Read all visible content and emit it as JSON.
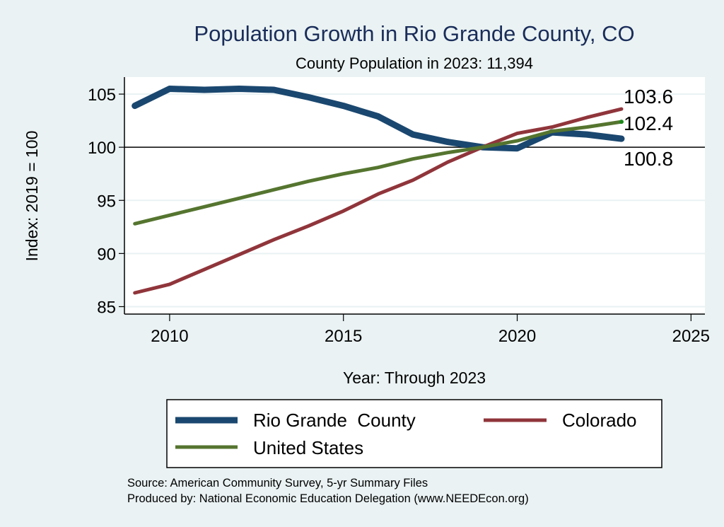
{
  "chart_data": {
    "type": "line",
    "title": "Population Growth in Rio Grande County, CO",
    "subtitle": "County Population in 2023: 11,394",
    "xlabel": "Year: Through 2023",
    "ylabel": "Index: 2019 = 100",
    "xlim": [
      2008.7,
      2025.4
    ],
    "ylim": [
      84.3,
      106.6
    ],
    "x_ticks": [
      2010,
      2015,
      2020,
      2025
    ],
    "y_ticks": [
      85,
      90,
      95,
      100,
      105
    ],
    "x_tick_labels": [
      "2010",
      "2015",
      "2020",
      "2025"
    ],
    "y_tick_labels": [
      "85",
      "90",
      "95",
      "100",
      "105"
    ],
    "grid": true,
    "reference_line": 100,
    "x": [
      2009,
      2010,
      2011,
      2012,
      2013,
      2014,
      2015,
      2016,
      2017,
      2018,
      2019,
      2020,
      2021,
      2022,
      2023
    ],
    "series": [
      {
        "name": "Rio Grande  County",
        "color": "#1a476f",
        "values": [
          103.9,
          105.5,
          105.4,
          105.5,
          105.4,
          104.7,
          103.9,
          102.9,
          101.2,
          100.5,
          100.0,
          99.9,
          101.4,
          101.2,
          100.8
        ],
        "end_label": "100.8"
      },
      {
        "name": "Colorado",
        "color": "#90353b",
        "values": [
          86.3,
          87.1,
          88.5,
          89.9,
          91.3,
          92.6,
          94.0,
          95.6,
          96.9,
          98.6,
          100.0,
          101.3,
          101.9,
          102.8,
          103.6
        ],
        "end_label": "103.6"
      },
      {
        "name": "United States",
        "color": "#55752f",
        "values": [
          92.8,
          93.6,
          94.4,
          95.2,
          96.0,
          96.8,
          97.5,
          98.1,
          98.9,
          99.5,
          100.0,
          100.6,
          101.5,
          101.9,
          102.4
        ],
        "end_label": "102.4"
      }
    ],
    "legend": {
      "position": "bottom",
      "entries": [
        "Rio Grande  County",
        "Colorado",
        "United States"
      ]
    },
    "notes": [
      "Source: American Community Survey, 5-yr Summary Files",
      "Produced by: National Economic Education Delegation (www.NEEDEcon.org)"
    ]
  }
}
